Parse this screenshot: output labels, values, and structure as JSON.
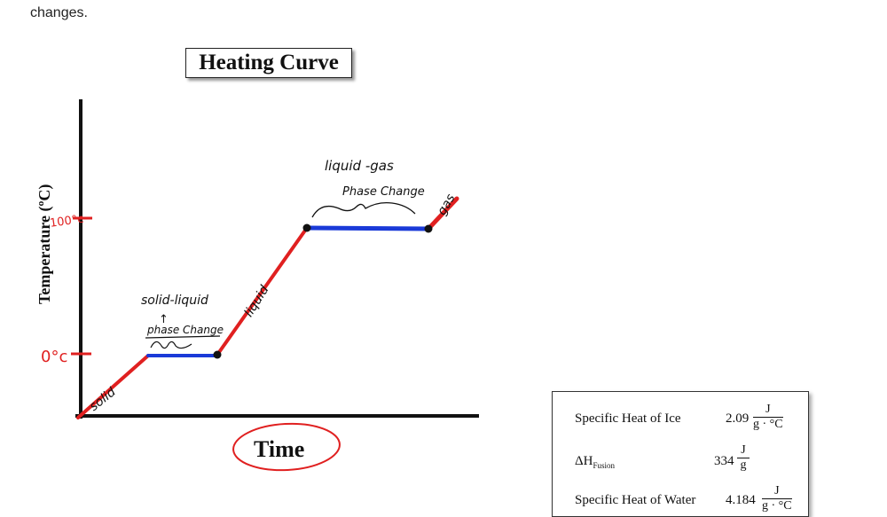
{
  "header": {
    "fragment_text": "changes."
  },
  "chart": {
    "title": "Heating Curve",
    "xlabel": "Time",
    "ylabel": "Temperature (ºC)",
    "annotations": {
      "mark_100": "100°c",
      "mark_0": "0°c",
      "solid": "solid",
      "liquid": "liquid",
      "gas": "gas",
      "solid_liquid": "solid-liquid",
      "phase_change_1": "phase Change",
      "liquid_gas": "liquid -gas",
      "phase_change_2": "Phase Change"
    },
    "colors": {
      "heating_segment": "#e02020",
      "phase_change_segment": "#1a3ad8",
      "axis": "#111111",
      "marks": "#e02020"
    }
  },
  "table": {
    "rows": [
      {
        "label": "Specific Heat of Ice",
        "value": "2.09",
        "unit_num": "J",
        "unit_den": "g · °C"
      },
      {
        "label_main": "ΔH",
        "label_sub": "Fusion",
        "value": "334",
        "unit_num": "J",
        "unit_den": "g"
      },
      {
        "label": "Specific Heat of Water",
        "value": "4.184",
        "unit_num": "J",
        "unit_den": "g · °C"
      }
    ]
  }
}
